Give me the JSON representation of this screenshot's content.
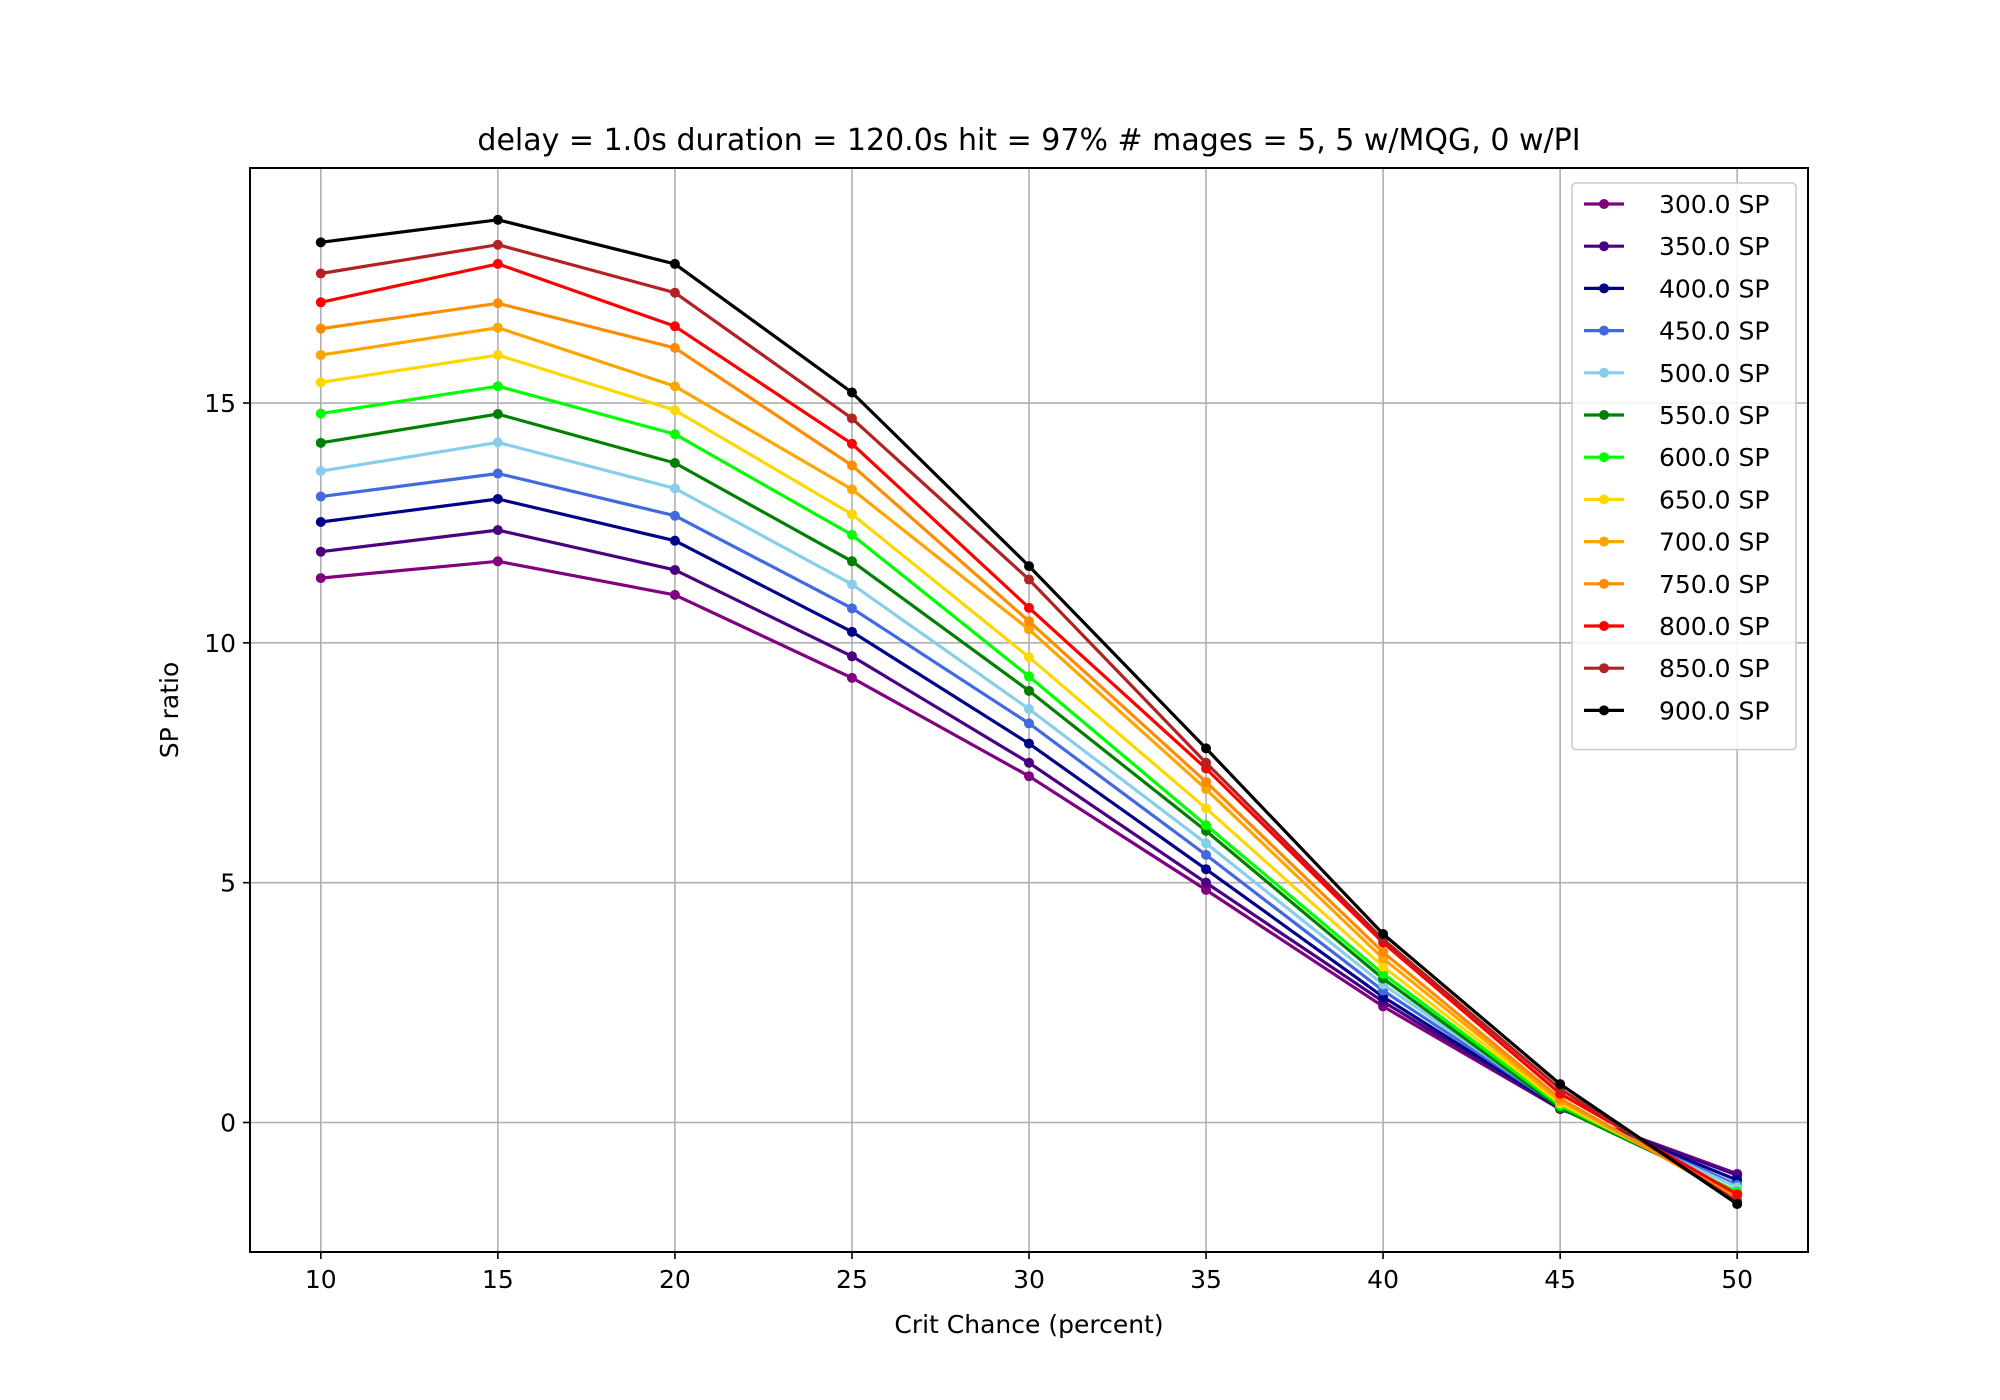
{
  "chart_data": {
    "type": "line",
    "title": "delay = 1.0s duration = 120.0s hit = 97% # mages = 5, 5 w/MQG, 0 w/PI",
    "xlabel": "Crit Chance (percent)",
    "ylabel": "SP ratio",
    "x": [
      10,
      15,
      20,
      25,
      30,
      35,
      40,
      45,
      50
    ],
    "xlim": [
      8,
      52
    ],
    "ylim": [
      -2.7,
      19.9
    ],
    "xticks": [
      10,
      15,
      20,
      25,
      30,
      35,
      40,
      45,
      50
    ],
    "yticks": [
      0,
      5,
      10,
      15
    ],
    "grid": true,
    "legend_position": "top-right",
    "series": [
      {
        "name": "300.0 SP",
        "color": "#800080",
        "values": [
          11.35,
          11.7,
          11.0,
          9.27,
          7.22,
          4.85,
          2.42,
          0.28,
          -1.07
        ]
      },
      {
        "name": "350.0 SP",
        "color": "#4b0082",
        "values": [
          11.9,
          12.35,
          11.52,
          9.72,
          7.5,
          5.0,
          2.52,
          0.28,
          -1.1
        ]
      },
      {
        "name": "400.0 SP",
        "color": "#00008b",
        "values": [
          12.52,
          13.0,
          12.13,
          10.23,
          7.9,
          5.28,
          2.62,
          0.3,
          -1.2
        ]
      },
      {
        "name": "450.0 SP",
        "color": "#4169e1",
        "values": [
          13.05,
          13.53,
          12.65,
          10.72,
          8.32,
          5.58,
          2.75,
          0.32,
          -1.3
        ]
      },
      {
        "name": "500.0 SP",
        "color": "#87ceeb",
        "values": [
          13.58,
          14.18,
          13.22,
          11.22,
          8.62,
          5.82,
          2.88,
          0.33,
          -1.35
        ]
      },
      {
        "name": "550.0 SP",
        "color": "#008000",
        "values": [
          14.17,
          14.77,
          13.75,
          11.7,
          9.0,
          6.08,
          3.0,
          0.3,
          -1.45
        ]
      },
      {
        "name": "600.0 SP",
        "color": "#00ff00",
        "values": [
          14.78,
          15.35,
          14.35,
          12.25,
          9.3,
          6.2,
          3.1,
          0.35,
          -1.45
        ]
      },
      {
        "name": "650.0 SP",
        "color": "#ffd700",
        "values": [
          15.43,
          16.0,
          14.85,
          12.68,
          9.7,
          6.55,
          3.25,
          0.4,
          -1.5
        ]
      },
      {
        "name": "700.0 SP",
        "color": "#ffa500",
        "values": [
          16.0,
          16.57,
          15.35,
          13.2,
          10.28,
          6.95,
          3.42,
          0.45,
          -1.55
        ]
      },
      {
        "name": "750.0 SP",
        "color": "#ff8c00",
        "values": [
          16.55,
          17.08,
          16.15,
          13.7,
          10.45,
          7.1,
          3.55,
          0.5,
          -1.6
        ]
      },
      {
        "name": "800.0 SP",
        "color": "#ff0000",
        "values": [
          17.1,
          17.9,
          16.6,
          14.15,
          10.73,
          7.38,
          3.75,
          0.6,
          -1.5
        ]
      },
      {
        "name": "850.0 SP",
        "color": "#b22222",
        "values": [
          17.7,
          18.3,
          17.3,
          14.68,
          11.32,
          7.5,
          3.82,
          0.7,
          -1.65
        ]
      },
      {
        "name": "900.0 SP",
        "color": "#000000",
        "values": [
          18.35,
          18.82,
          17.9,
          15.22,
          11.6,
          7.8,
          3.93,
          0.8,
          -1.7
        ]
      }
    ]
  }
}
